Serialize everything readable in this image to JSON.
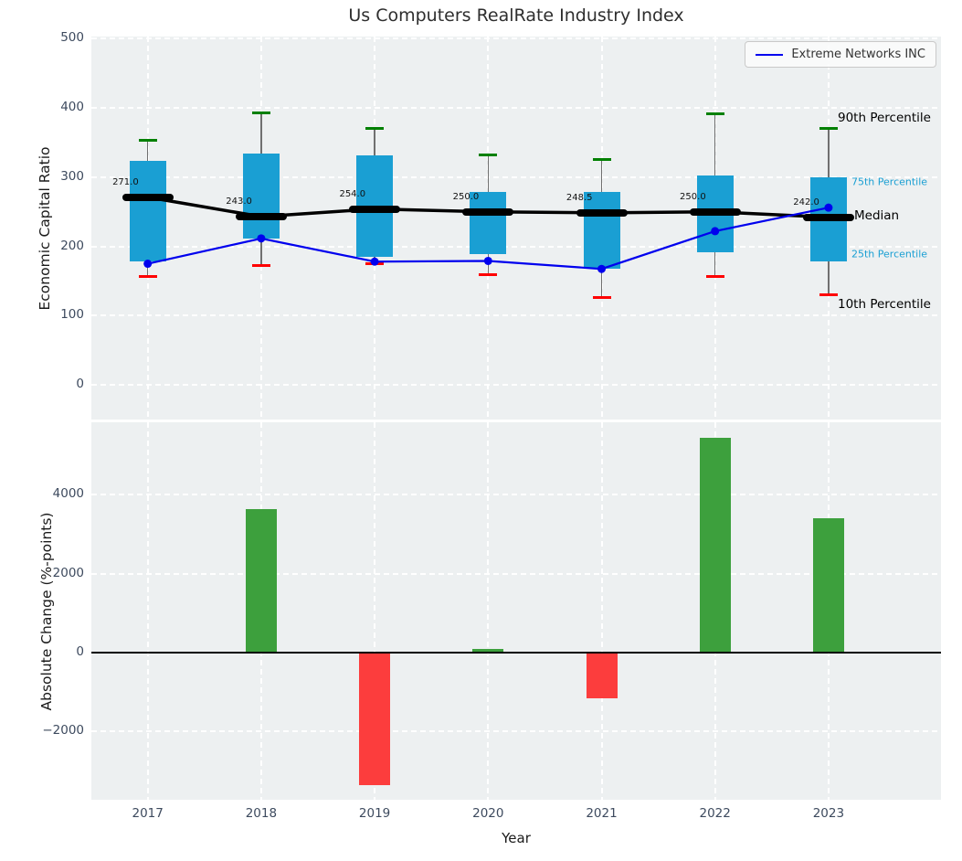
{
  "figure": {
    "title": "Us Computers RealRate Industry Index"
  },
  "colors": {
    "axes_background": "#edf0f1",
    "grid": "#ffffff",
    "tick_label": "#3d4a5e",
    "box_fill": "#1a9fd3",
    "p90_cap": "#008000",
    "p10_cap": "#ff0000",
    "median": "#000000",
    "company_line": "#0000ee",
    "bar_positive": "#3da03d",
    "bar_negative": "#fc3d3d"
  },
  "chart_data": [
    {
      "type": "box",
      "name": "economic-capital-ratio-percentiles",
      "title": "Us Computers RealRate Industry Index",
      "ylabel": "Economic Capital Ratio",
      "xlabel": "",
      "ylim": [
        -50,
        503
      ],
      "grid": true,
      "yticks": [
        "500",
        "400",
        "300",
        "200",
        "100",
        "0"
      ],
      "ytick_values": [
        500,
        400,
        300,
        200,
        100,
        0
      ],
      "categories": [
        "2017",
        "2018",
        "2019",
        "2020",
        "2021",
        "2022",
        "2023"
      ],
      "series": [
        {
          "name": "90th Percentile",
          "values": [
            353,
            393,
            371,
            332,
            325,
            391,
            370
          ],
          "color": "#008000"
        },
        {
          "name": "75th Percentile",
          "values": [
            324,
            334,
            332,
            278,
            278,
            302,
            300
          ],
          "color": "#1a9fd3"
        },
        {
          "name": "Median",
          "values": [
            271,
            243,
            254,
            250,
            248.5,
            250,
            242
          ],
          "color": "#000000"
        },
        {
          "name": "25th Percentile",
          "values": [
            178,
            211,
            185,
            189,
            168,
            192,
            178
          ],
          "color": "#1a9fd3"
        },
        {
          "name": "10th Percentile",
          "values": [
            156,
            173,
            175,
            159,
            126,
            156,
            130
          ],
          "color": "#ff0000"
        },
        {
          "name": "Extreme Networks INC",
          "values": [
            175,
            211.5,
            178,
            179,
            167.5,
            222,
            256
          ],
          "color": "#0000ee"
        }
      ],
      "median_labels": [
        "271.0",
        "243.0",
        "254.0",
        "250.0",
        "248.5",
        "250.0",
        "242.0"
      ],
      "legend": {
        "label": "Extreme Networks INC",
        "position": "upper right"
      },
      "right_annotations": [
        {
          "label": "90th Percentile",
          "size": "large",
          "color": "#000000"
        },
        {
          "label": "75th Percentile",
          "size": "small",
          "color": "#1a9fd3"
        },
        {
          "label": "Median",
          "size": "large",
          "color": "#000000"
        },
        {
          "label": "25th Percentile",
          "size": "small",
          "color": "#1a9fd3"
        },
        {
          "label": "10th Percentile",
          "size": "large",
          "color": "#000000"
        }
      ]
    },
    {
      "type": "bar",
      "name": "absolute-change",
      "ylabel": "Absolute Change (%-points)",
      "xlabel": "Year",
      "ylim": [
        -3730,
        5840
      ],
      "grid": true,
      "yticks": [
        "4000",
        "2000",
        "0",
        "−2000"
      ],
      "ytick_values": [
        4000,
        2000,
        0,
        -2000
      ],
      "categories": [
        "2017",
        "2018",
        "2019",
        "2020",
        "2021",
        "2022",
        "2023"
      ],
      "values": [
        0,
        3650,
        -3350,
        100,
        -1150,
        5450,
        3400
      ],
      "positive_color": "#3da03d",
      "negative_color": "#fc3d3d"
    }
  ]
}
